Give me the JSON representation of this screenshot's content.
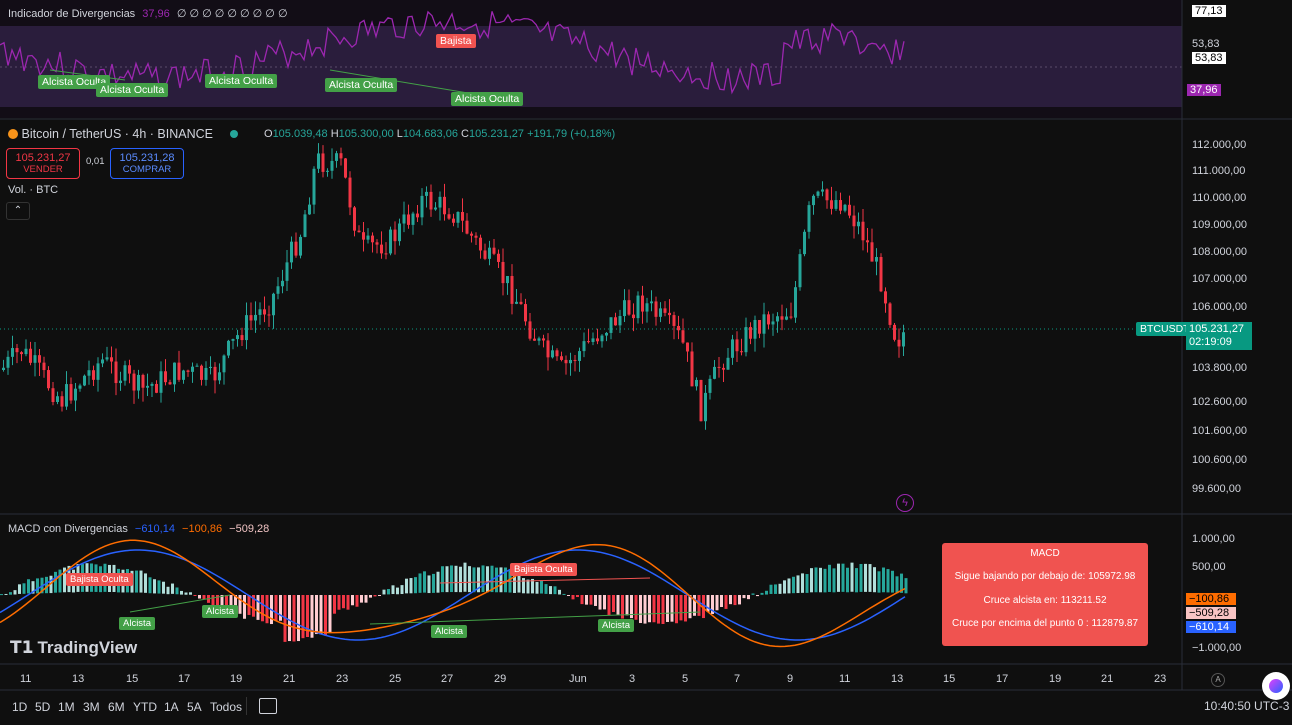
{
  "rsi_pane": {
    "title": "Indicador de Divergencias",
    "value": "37,96",
    "extra": "∅ ∅ ∅ ∅ ∅ ∅ ∅ ∅ ∅",
    "axis": [
      "77,13",
      "53,83",
      "53,83",
      "37,96"
    ],
    "labels": [
      {
        "text": "Bajista",
        "kind": "bear"
      },
      {
        "text": "Alcista Oculta",
        "kind": "bull"
      },
      {
        "text": "Alcista Oculta",
        "kind": "bull"
      },
      {
        "text": "Alcista Oculta",
        "kind": "bull"
      },
      {
        "text": "Alcista Oculta",
        "kind": "bull"
      },
      {
        "text": "Alcista Oculta",
        "kind": "bull"
      }
    ]
  },
  "symbol": {
    "name": "Bitcoin / TetherUS · 4h · BINANCE",
    "open_label": "O",
    "open": "105.039,48",
    "high_label": "H",
    "high": "105.300,00",
    "low_label": "L",
    "low": "104.683,06",
    "close_label": "C",
    "close": "105.231,27",
    "change": "+191,79 (+0,18%)"
  },
  "trade": {
    "sell_price": "105.231,27",
    "sell_label": "VENDER",
    "spread": "0,01",
    "buy_price": "105.231,28",
    "buy_label": "COMPRAR"
  },
  "volume_label": "Vol. · BTC",
  "price_axis": [
    "112.000,00",
    "111.000,00",
    "110.000,00",
    "109.000,00",
    "108.000,00",
    "107.000,00",
    "106.000,00",
    "103.800,00",
    "102.600,00",
    "101.600,00",
    "100.600,00",
    "99.600,00"
  ],
  "last_price": {
    "ticker": "BTCUSDT",
    "price": "105.231,27",
    "countdown": "02:19:09"
  },
  "macd_pane": {
    "title": "MACD con Divergencias",
    "v1": "−610,14",
    "v2": "−100,86",
    "v3": "−509,28",
    "axis": [
      "1.000,00",
      "500,00",
      "−1.000,00"
    ],
    "axis_tags": [
      "−100,86",
      "−509,28",
      "−610,14"
    ],
    "labels": [
      {
        "text": "Bajista Oculta",
        "kind": "bear"
      },
      {
        "text": "Bajista Oculta",
        "kind": "bear"
      },
      {
        "text": "Alcista",
        "kind": "bull"
      },
      {
        "text": "Alcista",
        "kind": "bull"
      },
      {
        "text": "Alcista",
        "kind": "bull"
      },
      {
        "text": "Alcista",
        "kind": "bull"
      }
    ],
    "info": {
      "title": "MACD",
      "line1": "Sigue bajando por debajo de: 105972.98",
      "line2": "Cruce alcista en: 113211.52",
      "line3": "Cruce por encima del punto 0 : 112879.87"
    }
  },
  "time_axis": [
    "11",
    "13",
    "15",
    "17",
    "19",
    "21",
    "23",
    "25",
    "27",
    "29",
    "Jun",
    "3",
    "5",
    "7",
    "9",
    "11",
    "13",
    "15",
    "17",
    "19",
    "21",
    "23"
  ],
  "timeframes": [
    "1D",
    "5D",
    "1M",
    "3M",
    "6M",
    "YTD",
    "1A",
    "5A",
    "Todos"
  ],
  "brand": "TradingView",
  "clock": "10:40:50 UTC-3",
  "colors": {
    "bull": "#26a69a",
    "bear": "#f23645",
    "rsi": "#9c27b0",
    "macd": "#2962ff",
    "signal": "#ff6d00"
  }
}
